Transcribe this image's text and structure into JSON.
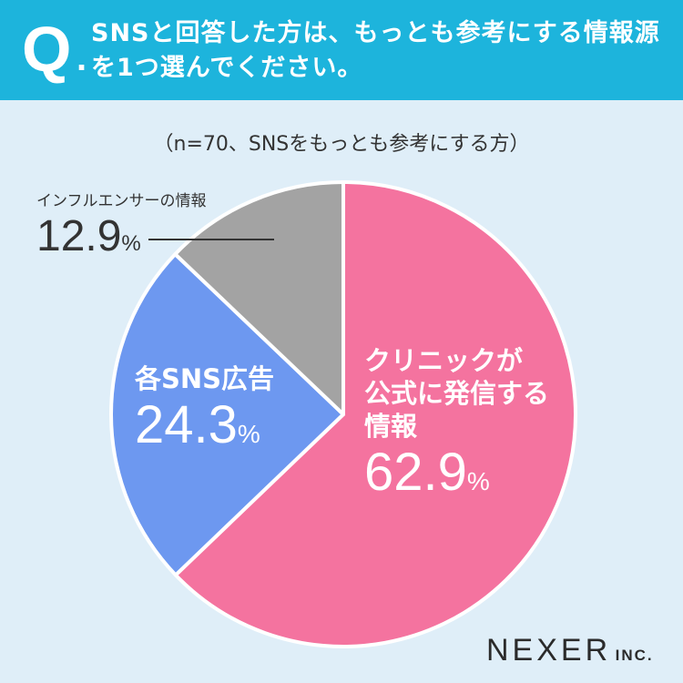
{
  "header": {
    "q_letter": "Q",
    "q_dot": ".",
    "question": "SNSと回答した方は、もっとも参考にする情報源を1つ選んでください。"
  },
  "chart_data": {
    "type": "pie",
    "title": "SNSと回答した方は、もっとも参考にする情報源を1つ選んでください。",
    "subtitle": "（n=70、SNSをもっとも参考にする方）",
    "unit": "%",
    "slices": [
      {
        "label": "クリニックが公式に発信する情報",
        "label_lines": [
          "クリニックが",
          "公式に発信する",
          "情報"
        ],
        "value": 62.9,
        "value_text": "62.9",
        "color": "#f4739f"
      },
      {
        "label": "各SNS広告",
        "label_lines": [
          "各SNS広告"
        ],
        "value": 24.3,
        "value_text": "24.3",
        "color": "#6d98f0"
      },
      {
        "label": "インフルエンサーの情報",
        "label_lines": [
          "インフルエンサーの情報"
        ],
        "value": 12.9,
        "value_text": "12.9",
        "color": "#a3a3a3"
      }
    ]
  },
  "logo": {
    "brand": "NEXER",
    "inc": "INC."
  },
  "colors": {
    "header": "#1db4dc",
    "background": "#dfeef8"
  }
}
